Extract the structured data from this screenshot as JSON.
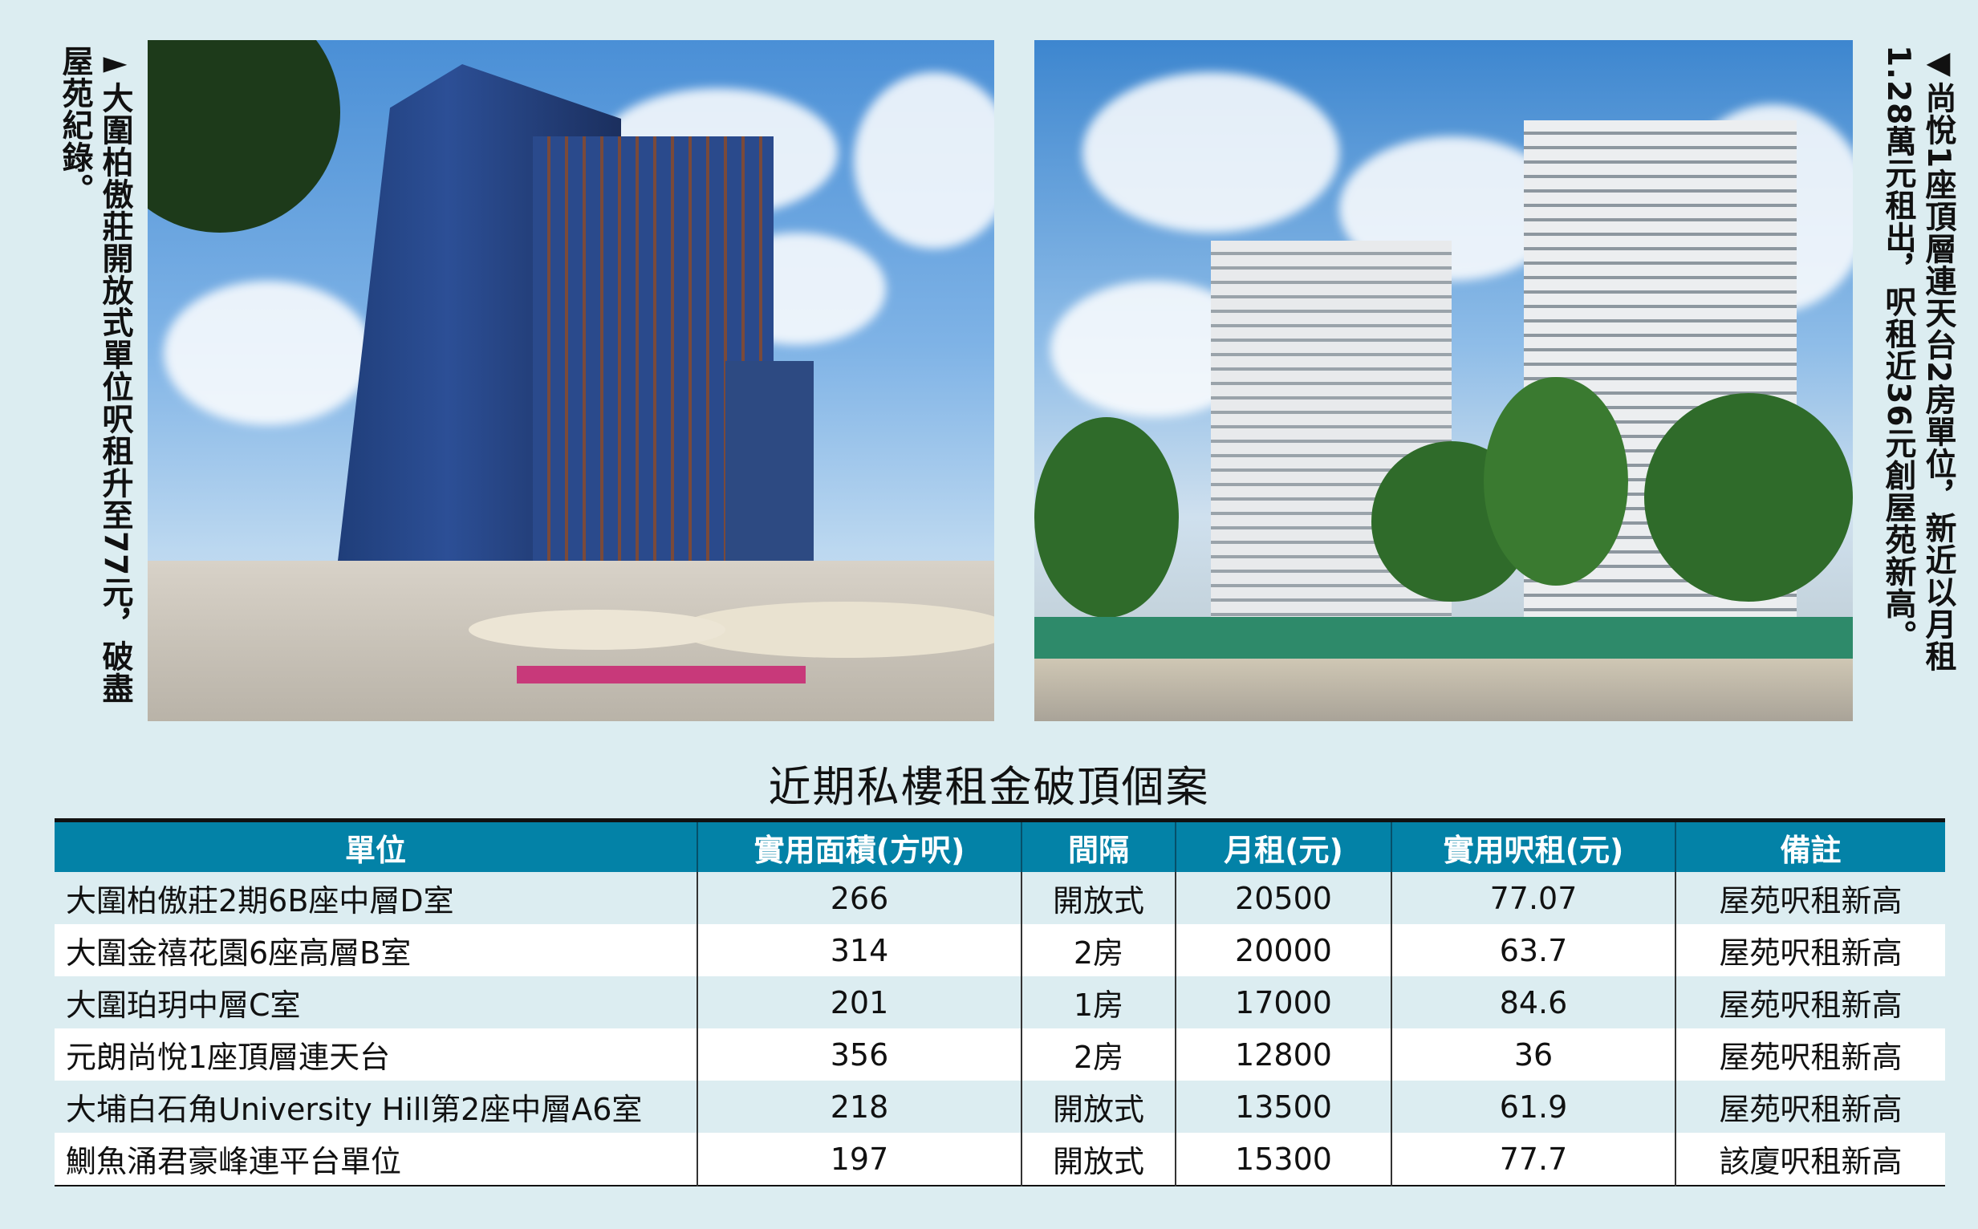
{
  "captions": {
    "left": "►大圍柏傲莊開放式單位呎租升至77元，破盡屋苑紀錄。",
    "right": "◀尚悅1座頂層連天台2房單位，新近以月租1.28萬元租出，呎租近36元創屋苑新高。"
  },
  "table": {
    "title": "近期私樓租金破頂個案",
    "header_color": "#0382a7",
    "headers": [
      "單位",
      "實用面積(方呎)",
      "間隔",
      "月租(元)",
      "實用呎租(元)",
      "備註"
    ],
    "rows": [
      [
        "大圍柏傲莊2期6B座中層D室",
        "266",
        "開放式",
        "20500",
        "77.07",
        "屋苑呎租新高"
      ],
      [
        "大圍金禧花園6座高層B室",
        "314",
        "2房",
        "20000",
        "63.7",
        "屋苑呎租新高"
      ],
      [
        "大圍珀玥中層C室",
        "201",
        "1房",
        "17000",
        "84.6",
        "屋苑呎租新高"
      ],
      [
        "元朗尚悅1座頂層連天台",
        "356",
        "2房",
        "12800",
        "36",
        "屋苑呎租新高"
      ],
      [
        "大埔白石角University  Hill第2座中層A6室",
        "218",
        "開放式",
        "13500",
        "61.9",
        "屋苑呎租新高"
      ],
      [
        "鰂魚涌君豪峰連平台單位",
        "197",
        "開放式",
        "15300",
        "77.7",
        "該廈呎租新高"
      ]
    ]
  }
}
